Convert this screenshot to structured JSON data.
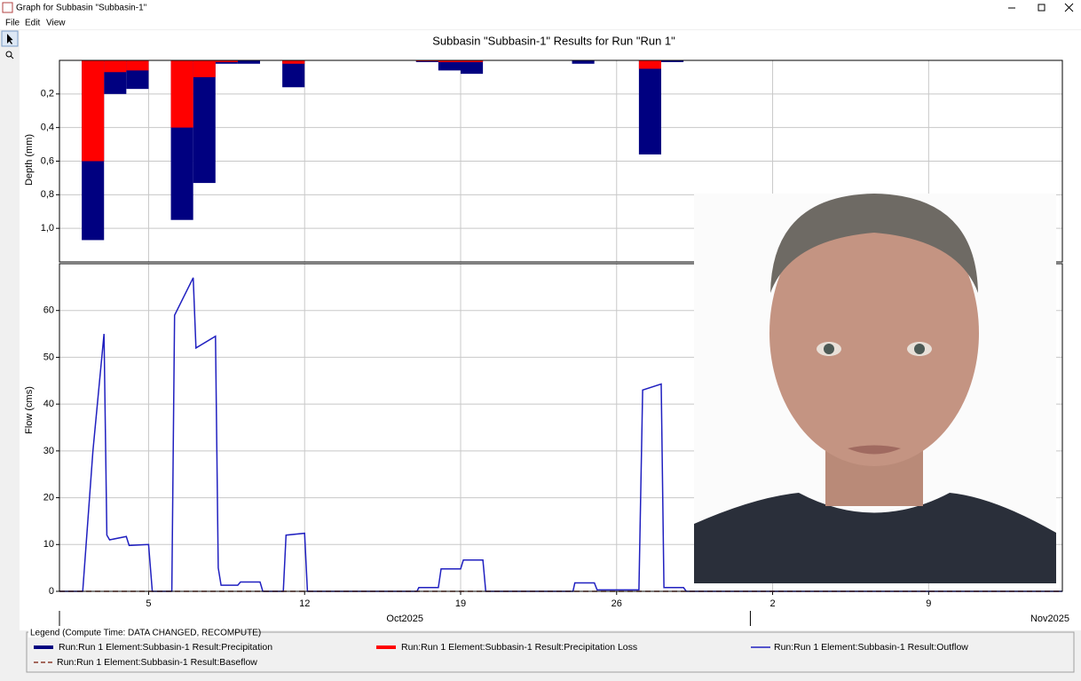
{
  "window": {
    "title": "Graph for Subbasin \"Subbasin-1\""
  },
  "menu": [
    "File",
    "Edit",
    "View"
  ],
  "legend": {
    "title": "Legend (Compute Time: DATA CHANGED, RECOMPUTE)"
  },
  "chart_data": [
    {
      "type": "bar",
      "title": "Subbasin \"Subbasin-1\" Results for Run \"Run 1\"",
      "y_label": "Depth (mm)",
      "y_inverted": true,
      "grid": true,
      "x": [
        "2025-10-02",
        "2025-10-03",
        "2025-10-04",
        "2025-10-06",
        "2025-10-07",
        "2025-10-08",
        "2025-10-09",
        "2025-10-11",
        "2025-10-17",
        "2025-10-18",
        "2025-10-19",
        "2025-10-24",
        "2025-10-27",
        "2025-10-28"
      ],
      "xlim": [
        "2025-10-01",
        "2025-11-15"
      ],
      "xticks": [
        {
          "value": "2025-10-05",
          "label": "5"
        },
        {
          "value": "2025-10-12",
          "label": "12"
        },
        {
          "value": "2025-10-19",
          "label": "19"
        },
        {
          "value": "2025-10-26",
          "label": "26"
        },
        {
          "value": "2025-11-02",
          "label": "2"
        },
        {
          "value": "2025-11-09",
          "label": "9"
        }
      ],
      "ylim": [
        0,
        1.2
      ],
      "yticks": [
        {
          "value": 0.2,
          "label": "0,2"
        },
        {
          "value": 0.4,
          "label": "0,4"
        },
        {
          "value": 0.6,
          "label": "0,6"
        },
        {
          "value": 0.8,
          "label": "0,8"
        },
        {
          "value": 1.0,
          "label": "1,0"
        }
      ],
      "series": [
        {
          "name": "Run:Run 1 Element:Subbasin-1 Result:Precipitation",
          "color": "#000080",
          "values": [
            1.07,
            0.2,
            0.17,
            0.95,
            0.73,
            0.02,
            0.02,
            0.16,
            0.01,
            0.06,
            0.08,
            0.02,
            0.56,
            0.01
          ]
        },
        {
          "name": "Run:Run 1 Element:Subbasin-1 Result:Precipitation Loss",
          "color": "#ff0000",
          "values": [
            0.6,
            0.07,
            0.06,
            0.4,
            0.1,
            0.01,
            0,
            0.02,
            0.005,
            0.01,
            0.01,
            0,
            0.05,
            0
          ]
        }
      ]
    },
    {
      "type": "line",
      "y_label": "Flow (cms)",
      "grid": true,
      "xlim": [
        "2025-10-01",
        "2025-11-15"
      ],
      "xticks": [
        {
          "value": "2025-10-05",
          "label": "5"
        },
        {
          "value": "2025-10-12",
          "label": "12"
        },
        {
          "value": "2025-10-19",
          "label": "19"
        },
        {
          "value": "2025-10-26",
          "label": "26"
        },
        {
          "value": "2025-11-02",
          "label": "2"
        },
        {
          "value": "2025-11-09",
          "label": "9"
        }
      ],
      "month_labels": [
        {
          "value": "2025-10-01",
          "label": "Oct2025"
        },
        {
          "value": "2025-11-01",
          "label": "Nov2025"
        }
      ],
      "ylim": [
        0,
        70
      ],
      "yticks": [
        0,
        10,
        20,
        30,
        40,
        50,
        60
      ],
      "x": [
        "2025-10-01T00:00",
        "2025-10-02T01:00",
        "2025-10-02T12:00",
        "2025-10-03T00:00",
        "2025-10-03T03:00",
        "2025-10-03T06:00",
        "2025-10-04T00:00",
        "2025-10-04T03:00",
        "2025-10-05T00:00",
        "2025-10-05T04:00",
        "2025-10-06T01:00",
        "2025-10-06T04:00",
        "2025-10-07T00:00",
        "2025-10-07T03:00",
        "2025-10-08T00:00",
        "2025-10-08T03:00",
        "2025-10-08T06:00",
        "2025-10-09T00:00",
        "2025-10-09T03:00",
        "2025-10-10T00:00",
        "2025-10-10T03:00",
        "2025-10-11T01:00",
        "2025-10-11T04:00",
        "2025-10-12T00:00",
        "2025-10-12T03:00",
        "2025-10-17T01:00",
        "2025-10-17T03:00",
        "2025-10-18T00:00",
        "2025-10-18T03:00",
        "2025-10-19T00:00",
        "2025-10-19T03:00",
        "2025-10-20T00:00",
        "2025-10-20T03:00",
        "2025-10-24T01:00",
        "2025-10-24T03:00",
        "2025-10-25T00:00",
        "2025-10-25T03:00",
        "2025-10-27T00:00",
        "2025-10-27T04:00",
        "2025-10-28T00:00",
        "2025-10-28T03:00",
        "2025-10-29T00:00",
        "2025-10-29T03:00",
        "2025-11-15T00:00"
      ],
      "series": [
        {
          "name": "Run:Run 1 Element:Subbasin-1 Result:Outflow",
          "color": "#2020c0",
          "values": [
            0,
            0,
            30,
            55,
            12,
            11,
            11.7,
            9.8,
            10,
            0,
            0,
            59,
            67,
            52,
            54.5,
            5,
            1.3,
            1.3,
            2,
            2,
            0,
            0,
            12,
            12.4,
            0,
            0,
            0.8,
            0.8,
            4.8,
            4.8,
            6.7,
            6.7,
            0,
            0,
            1.8,
            1.8,
            0.3,
            0.3,
            43,
            44.3,
            0.8,
            0.8,
            0,
            0
          ]
        },
        {
          "name": "Run:Run 1 Element:Subbasin-1 Result:Baseflow",
          "color": "#8b3a2a",
          "dashed": true,
          "x": [
            "2025-10-01T00:00",
            "2025-11-15T00:00"
          ],
          "values": [
            0,
            0
          ]
        }
      ]
    }
  ]
}
